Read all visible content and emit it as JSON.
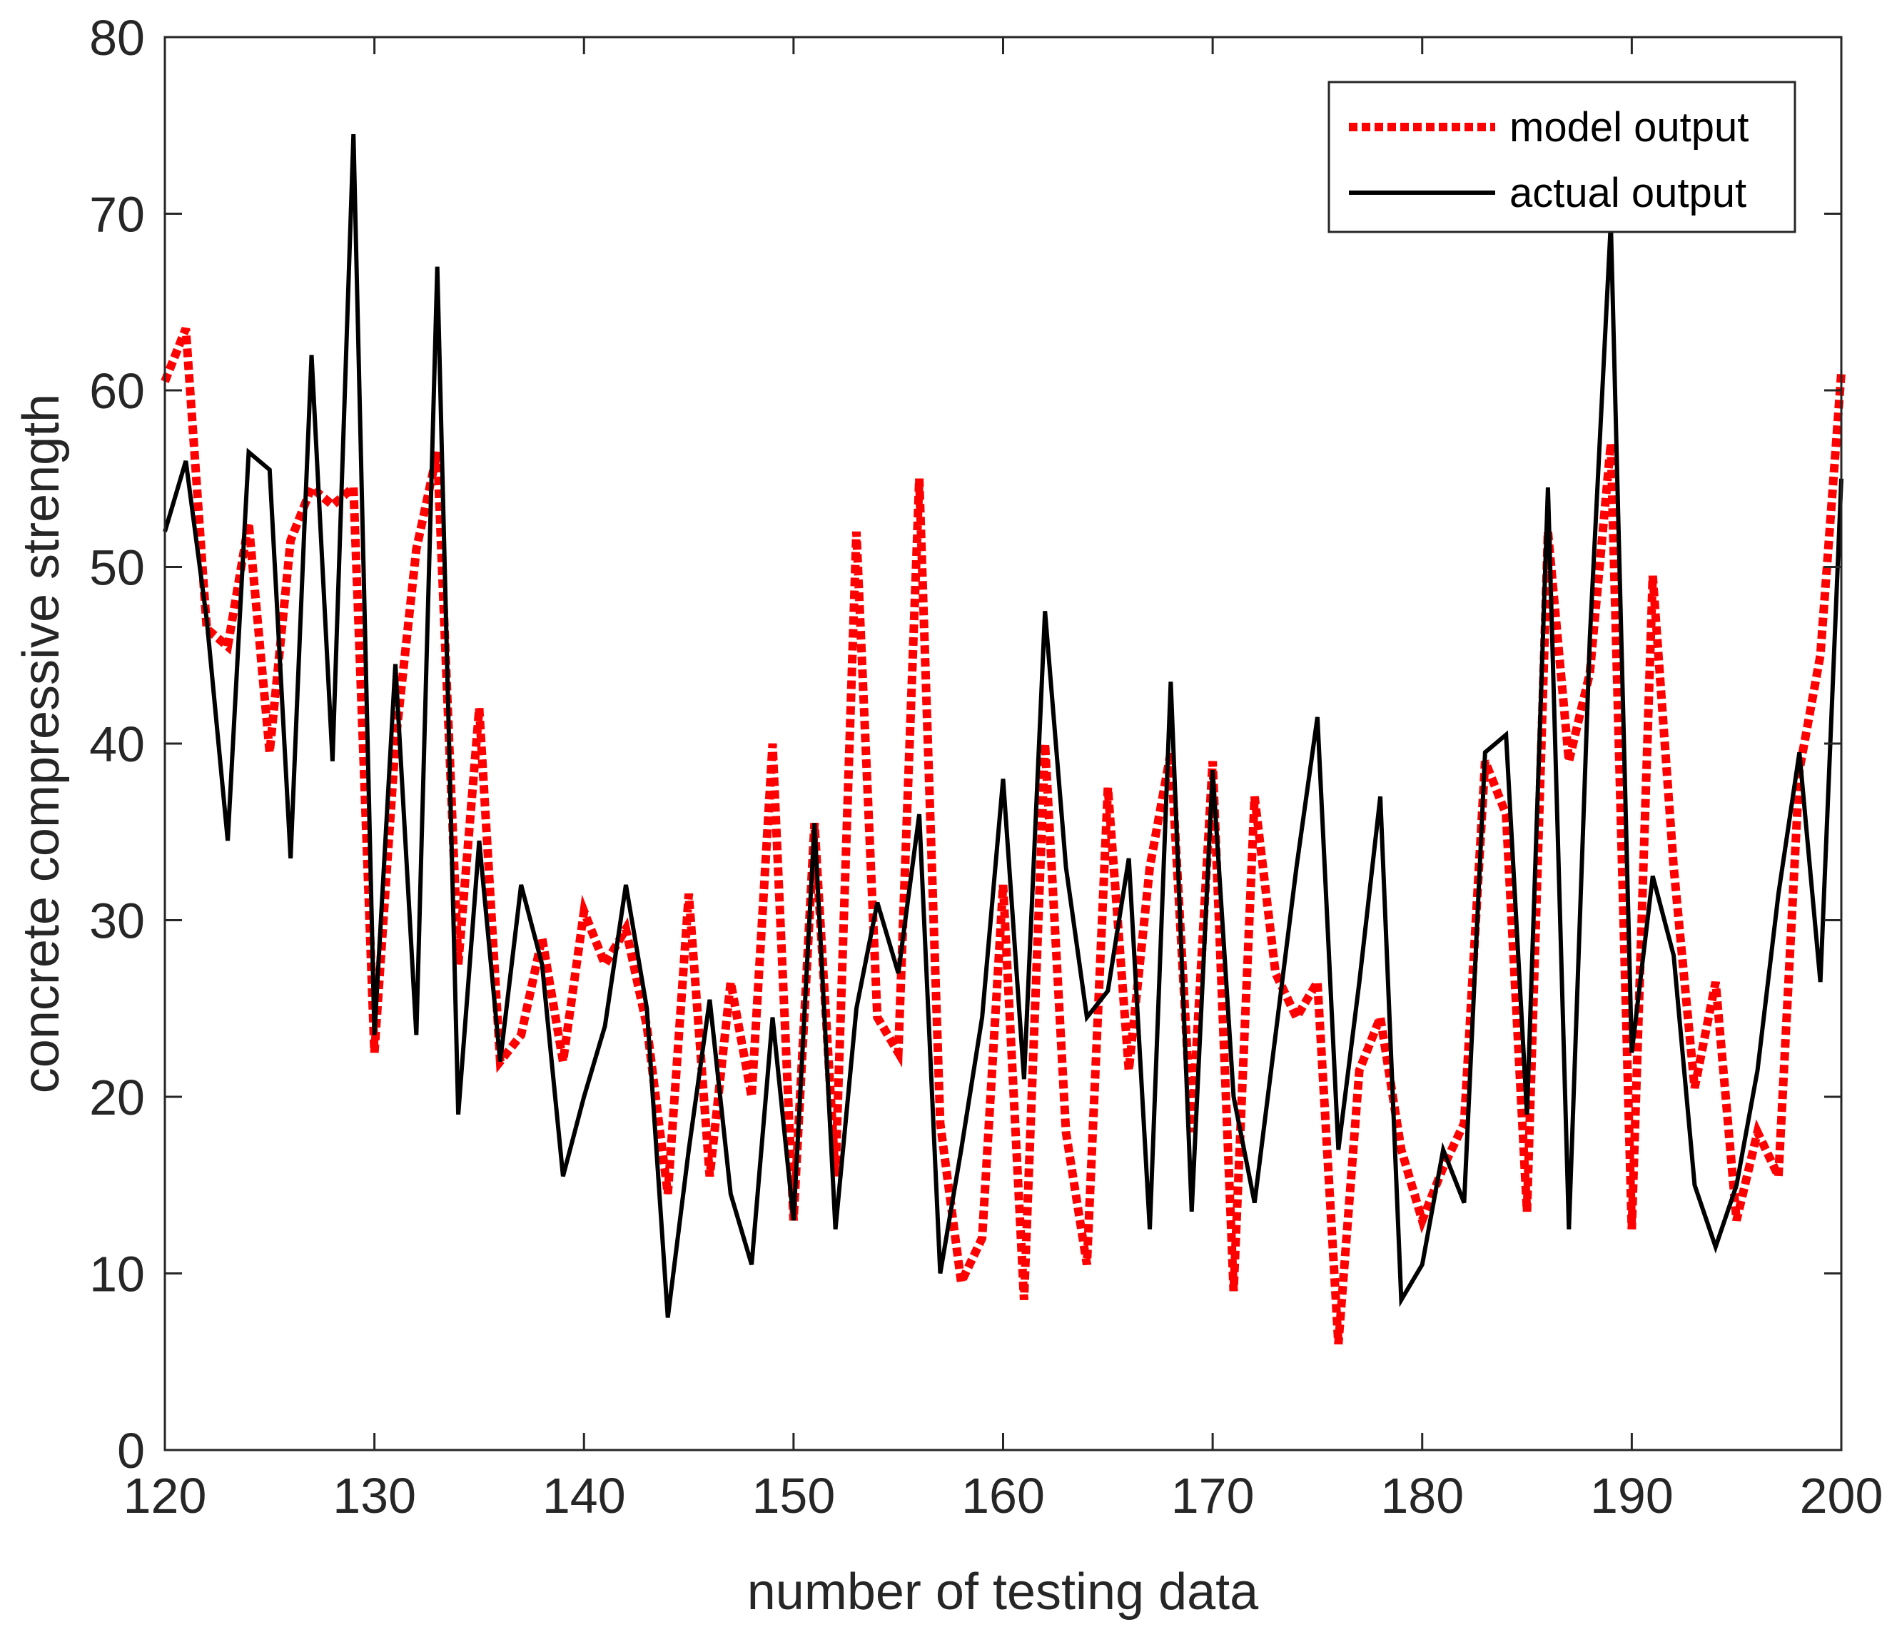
{
  "chart_data": {
    "type": "line",
    "title": "",
    "xlabel": "number of testing data",
    "ylabel": "concrete compressive strength",
    "xlim": [
      120,
      200
    ],
    "ylim": [
      0,
      80
    ],
    "xticks": [
      120,
      130,
      140,
      150,
      160,
      170,
      180,
      190,
      200
    ],
    "yticks": [
      0,
      10,
      20,
      30,
      40,
      50,
      60,
      70,
      80
    ],
    "grid": false,
    "legend_position": "top-right",
    "x_start": 120,
    "series": [
      {
        "name": "model output",
        "color": "#ff0000",
        "style": "dotted",
        "values": [
          60.5,
          63.5,
          46.5,
          45.5,
          52.5,
          39.5,
          51.5,
          54.5,
          53.5,
          54.5,
          22.5,
          40.0,
          51.0,
          56.5,
          27.5,
          42.0,
          22.0,
          23.5,
          29.0,
          22.0,
          30.5,
          27.5,
          29.5,
          24.0,
          14.5,
          31.5,
          15.5,
          26.5,
          20.0,
          40.0,
          13.0,
          35.5,
          15.5,
          52.0,
          24.5,
          22.5,
          55.0,
          18.5,
          9.5,
          12.0,
          32.0,
          8.5,
          40.0,
          18.0,
          10.5,
          37.5,
          21.5,
          33.0,
          39.5,
          18.0,
          39.0,
          9.0,
          37.0,
          27.0,
          24.5,
          26.5,
          6.0,
          21.5,
          24.5,
          17.0,
          13.0,
          16.0,
          18.5,
          39.0,
          36.0,
          13.5,
          52.0,
          39.0,
          44.0,
          57.0,
          12.5,
          49.5,
          33.0,
          20.5,
          26.5,
          13.0,
          18.0,
          15.5,
          38.5,
          45.0,
          61.0
        ]
      },
      {
        "name": "actual output",
        "color": "#000000",
        "style": "solid",
        "values": [
          52.0,
          56.0,
          47.0,
          34.5,
          56.5,
          55.5,
          33.5,
          62.0,
          39.0,
          74.5,
          23.5,
          44.5,
          23.5,
          67.0,
          19.0,
          34.5,
          22.0,
          32.0,
          27.5,
          15.5,
          20.0,
          24.0,
          32.0,
          25.0,
          7.5,
          17.0,
          25.5,
          14.5,
          10.5,
          24.5,
          13.0,
          35.5,
          12.5,
          25.0,
          31.0,
          27.0,
          36.0,
          10.0,
          17.0,
          24.5,
          38.0,
          21.0,
          47.5,
          33.0,
          24.5,
          26.0,
          33.5,
          12.5,
          43.5,
          13.5,
          38.5,
          20.0,
          14.0,
          23.5,
          33.0,
          41.5,
          17.0,
          26.5,
          37.0,
          8.5,
          10.5,
          17.0,
          14.0,
          39.5,
          40.5,
          19.0,
          54.5,
          12.5,
          46.0,
          69.5,
          22.5,
          32.5,
          28.0,
          15.0,
          11.5,
          15.0,
          21.5,
          31.5,
          39.5,
          26.5,
          55.0
        ]
      }
    ]
  }
}
